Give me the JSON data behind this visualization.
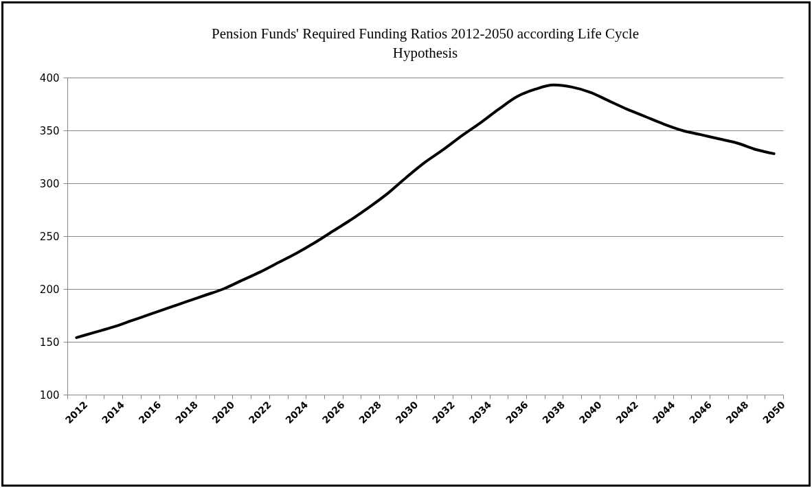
{
  "chart_data": {
    "type": "line",
    "title": "Pension Funds' Required Funding Ratios 2012-2050 according Life Cycle Hypothesis",
    "categories": [
      "2012",
      null,
      "2014",
      null,
      "2016",
      null,
      "2018",
      null,
      "2020",
      null,
      "2022",
      null,
      "2024",
      null,
      "2026",
      null,
      "2028",
      null,
      "2030",
      null,
      "2032",
      null,
      "2034",
      null,
      "2036",
      null,
      "2038",
      null,
      "2040",
      null,
      "2042",
      null,
      "2044",
      null,
      "2046",
      null,
      "2048",
      null,
      "2050"
    ],
    "series": [
      {
        "color": "#000000",
        "values": [
          154,
          159,
          164,
          170,
          176,
          182,
          188,
          194,
          200,
          208,
          216,
          225,
          234,
          244,
          255,
          266,
          278,
          291,
          306,
          320,
          332,
          345,
          357,
          370,
          382,
          389,
          393,
          391,
          386,
          378,
          370,
          363,
          356,
          350,
          346,
          342,
          338,
          332,
          328
        ]
      }
    ],
    "ylim": [
      100,
      400
    ],
    "yticks": [
      100,
      150,
      200,
      250,
      300,
      350,
      400
    ],
    "grid": "y",
    "legend": false,
    "marker": "none",
    "line_style": "solid"
  }
}
